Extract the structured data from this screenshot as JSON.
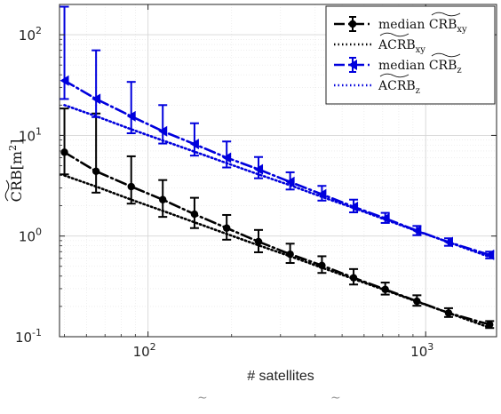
{
  "chart_data": {
    "type": "line",
    "xlabel": "# satellites",
    "ylabel_main": "CRB",
    "ylabel_unit": "[m",
    "ylabel_unit_exp": "2",
    "ylabel_unit_close": "]",
    "xscale": "log",
    "yscale": "log",
    "xlim": [
      48,
      1800
    ],
    "ylim": [
      0.1,
      200
    ],
    "grid": true,
    "legend_position": "top-right",
    "x_ticks": [
      {
        "value": 100,
        "base": "10",
        "exp": "2"
      },
      {
        "value": 1000,
        "base": "10",
        "exp": "3"
      }
    ],
    "y_ticks": [
      {
        "value": 0.1,
        "base": "10",
        "exp": "-1"
      },
      {
        "value": 1,
        "base": "10",
        "exp": "0"
      },
      {
        "value": 10,
        "base": "10",
        "exp": "1"
      },
      {
        "value": 100,
        "base": "10",
        "exp": "2"
      }
    ],
    "x": [
      50,
      65,
      87,
      113,
      147,
      192,
      250,
      325,
      423,
      550,
      715,
      930,
      1209,
      1700
    ],
    "series": [
      {
        "name": "median CRB_xy",
        "legend_main": "median ",
        "legend_crb": "CRB",
        "legend_sub": "xy",
        "color": "#000000",
        "style": "dashed-dot",
        "marker": "circle",
        "values": [
          6.8,
          4.4,
          3.1,
          2.3,
          1.65,
          1.2,
          0.88,
          0.66,
          0.51,
          0.385,
          0.295,
          0.225,
          0.172,
          0.132
        ],
        "err_low": [
          4.1,
          2.7,
          2.1,
          1.55,
          1.2,
          0.92,
          0.69,
          0.54,
          0.43,
          0.33,
          0.262,
          0.203,
          0.157,
          0.122
        ],
        "err_high": [
          18.5,
          16.5,
          6.2,
          3.6,
          2.4,
          1.62,
          1.15,
          0.84,
          0.63,
          0.47,
          0.345,
          0.258,
          0.192,
          0.143
        ]
      },
      {
        "name": "ACRB_xy",
        "legend_main": "ACRB",
        "legend_sub": "xy",
        "color": "#000000",
        "style": "dotted",
        "values": [
          4.0,
          3.1,
          2.3,
          1.78,
          1.37,
          1.05,
          0.81,
          0.63,
          0.485,
          0.375,
          0.29,
          0.223,
          0.172,
          0.123
        ]
      },
      {
        "name": "median CRB_z",
        "legend_main": "median ",
        "legend_crb": "CRB",
        "legend_sub": "z",
        "color": "#0000dd",
        "style": "dashed-dot",
        "marker": "triangle-left",
        "values": [
          35,
          23,
          15.5,
          11,
          8.2,
          6.0,
          4.6,
          3.45,
          2.6,
          1.95,
          1.5,
          1.13,
          0.87,
          0.65
        ],
        "err_low": [
          23,
          15.2,
          10.5,
          8.3,
          6.3,
          4.8,
          3.75,
          2.9,
          2.25,
          1.72,
          1.35,
          1.02,
          0.8,
          0.6
        ],
        "err_high": [
          190,
          70,
          34,
          20,
          13.2,
          8.7,
          6.1,
          4.3,
          3.15,
          2.3,
          1.7,
          1.26,
          0.95,
          0.7
        ]
      },
      {
        "name": "ACRB_z",
        "legend_main": "ACRB",
        "legend_sub": "z",
        "color": "#0000dd",
        "style": "dotted",
        "values": [
          20,
          15.5,
          11.5,
          8.9,
          6.9,
          5.3,
          4.1,
          3.2,
          2.45,
          1.9,
          1.46,
          1.12,
          0.87,
          0.62
        ]
      }
    ]
  }
}
